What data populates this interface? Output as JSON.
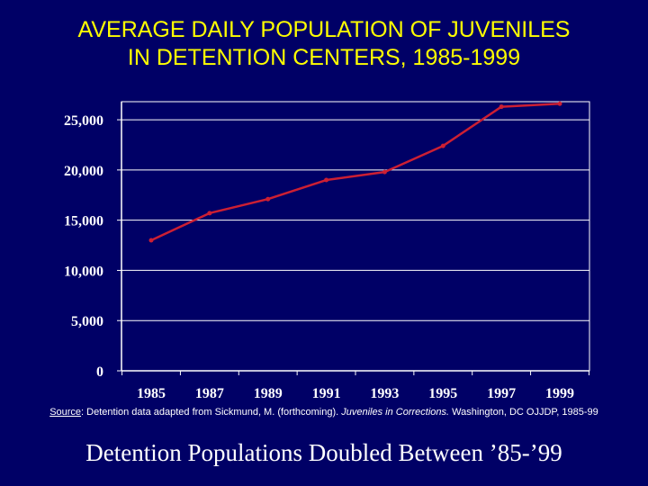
{
  "title": {
    "line1": "AVERAGE DAILY POPULATION OF JUVENILES",
    "line2": "IN DETENTION CENTERS, 1985-1999"
  },
  "source": {
    "prefix": "Source",
    "part1": ": Detention data adapted from Sickmund, M. (forthcoming). ",
    "italic": "Juveniles in Corrections.",
    "part2": " Washington, DC OJJDP, 1985-99"
  },
  "footer": "Detention Populations Doubled Between ’85-’99",
  "colors": {
    "background": "#000066",
    "plot_area": "#000066",
    "title": "#ffff00",
    "series": "#cc1f33",
    "axis": "#ffffff"
  },
  "chart_data": {
    "type": "line",
    "title": "AVERAGE DAILY POPULATION OF JUVENILES IN DETENTION CENTERS, 1985-1999",
    "xlabel": "",
    "ylabel": "",
    "x": [
      1985,
      1987,
      1989,
      1991,
      1993,
      1995,
      1997,
      1999
    ],
    "x_tick_labels": [
      "1985",
      "1987",
      "1989",
      "1991",
      "1993",
      "1995",
      "1997",
      "1999"
    ],
    "y_ticks": [
      0,
      5000,
      10000,
      15000,
      20000,
      25000
    ],
    "y_tick_labels": [
      "0",
      "5,000",
      "10,000",
      "15,000",
      "20,000",
      "25,000"
    ],
    "ylim": [
      0,
      26800
    ],
    "grid": "horizontal",
    "legend": "none",
    "series": [
      {
        "values": [
          13000,
          15700,
          17100,
          19000,
          19800,
          22400,
          26300,
          26600
        ]
      }
    ]
  }
}
